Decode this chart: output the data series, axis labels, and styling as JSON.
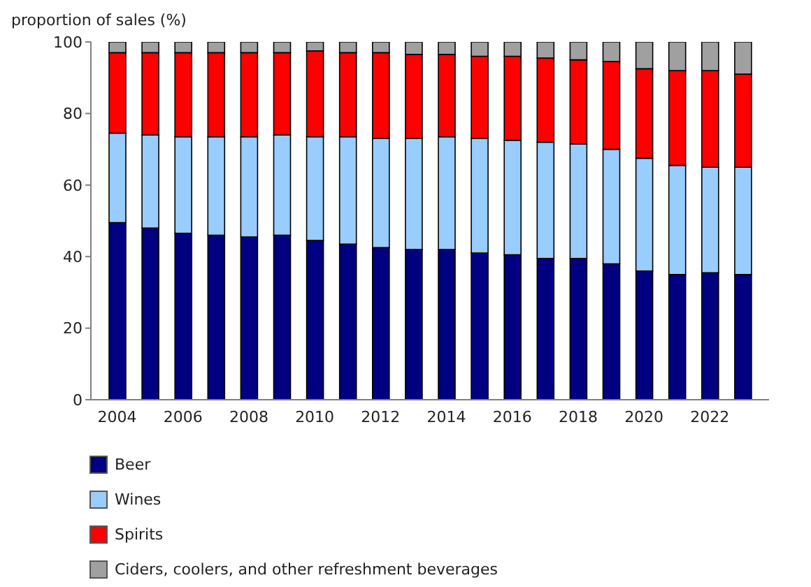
{
  "chart_data": {
    "type": "bar",
    "stacked": true,
    "ylabel": "proportion of sales (%)",
    "categories": [
      "2004",
      null,
      "2006",
      null,
      "2008",
      null,
      "2010",
      null,
      "2012",
      null,
      "2014",
      null,
      "2016",
      null,
      "2018",
      null,
      "2020",
      null,
      "2022",
      null
    ],
    "series": [
      {
        "name": "Beer",
        "color": "#000080",
        "values": [
          49.5,
          48,
          46.5,
          46,
          45.5,
          46,
          44.5,
          43.5,
          42.5,
          42,
          42,
          41,
          40.5,
          39.5,
          39.5,
          38,
          36,
          35,
          35.5,
          35
        ]
      },
      {
        "name": "Wines",
        "color": "#99ccff",
        "values": [
          25,
          26,
          27,
          27.5,
          28,
          28,
          29,
          30,
          30.5,
          31,
          31.5,
          32,
          32,
          32.5,
          32,
          32,
          31.5,
          30.5,
          29.5,
          30
        ]
      },
      {
        "name": "Spirits",
        "color": "#ff0000",
        "values": [
          22.5,
          23,
          23.5,
          23.5,
          23.5,
          23,
          24,
          23.5,
          24,
          23.5,
          23,
          23,
          23.5,
          23.5,
          23.5,
          24.5,
          25,
          26.5,
          27,
          26
        ]
      },
      {
        "name": "Ciders, coolers, and other refreshment beverages",
        "color": "#a0a0a0",
        "values": [
          3,
          3,
          3,
          3,
          3,
          3,
          2.5,
          3,
          3,
          3.5,
          3.5,
          4,
          4,
          4.5,
          5,
          5.5,
          7.5,
          8,
          8,
          9
        ]
      }
    ],
    "ylim": [
      0,
      100
    ],
    "yticks": [
      0,
      20,
      40,
      60,
      80,
      100
    ],
    "grid": false,
    "legend": "bottom"
  }
}
